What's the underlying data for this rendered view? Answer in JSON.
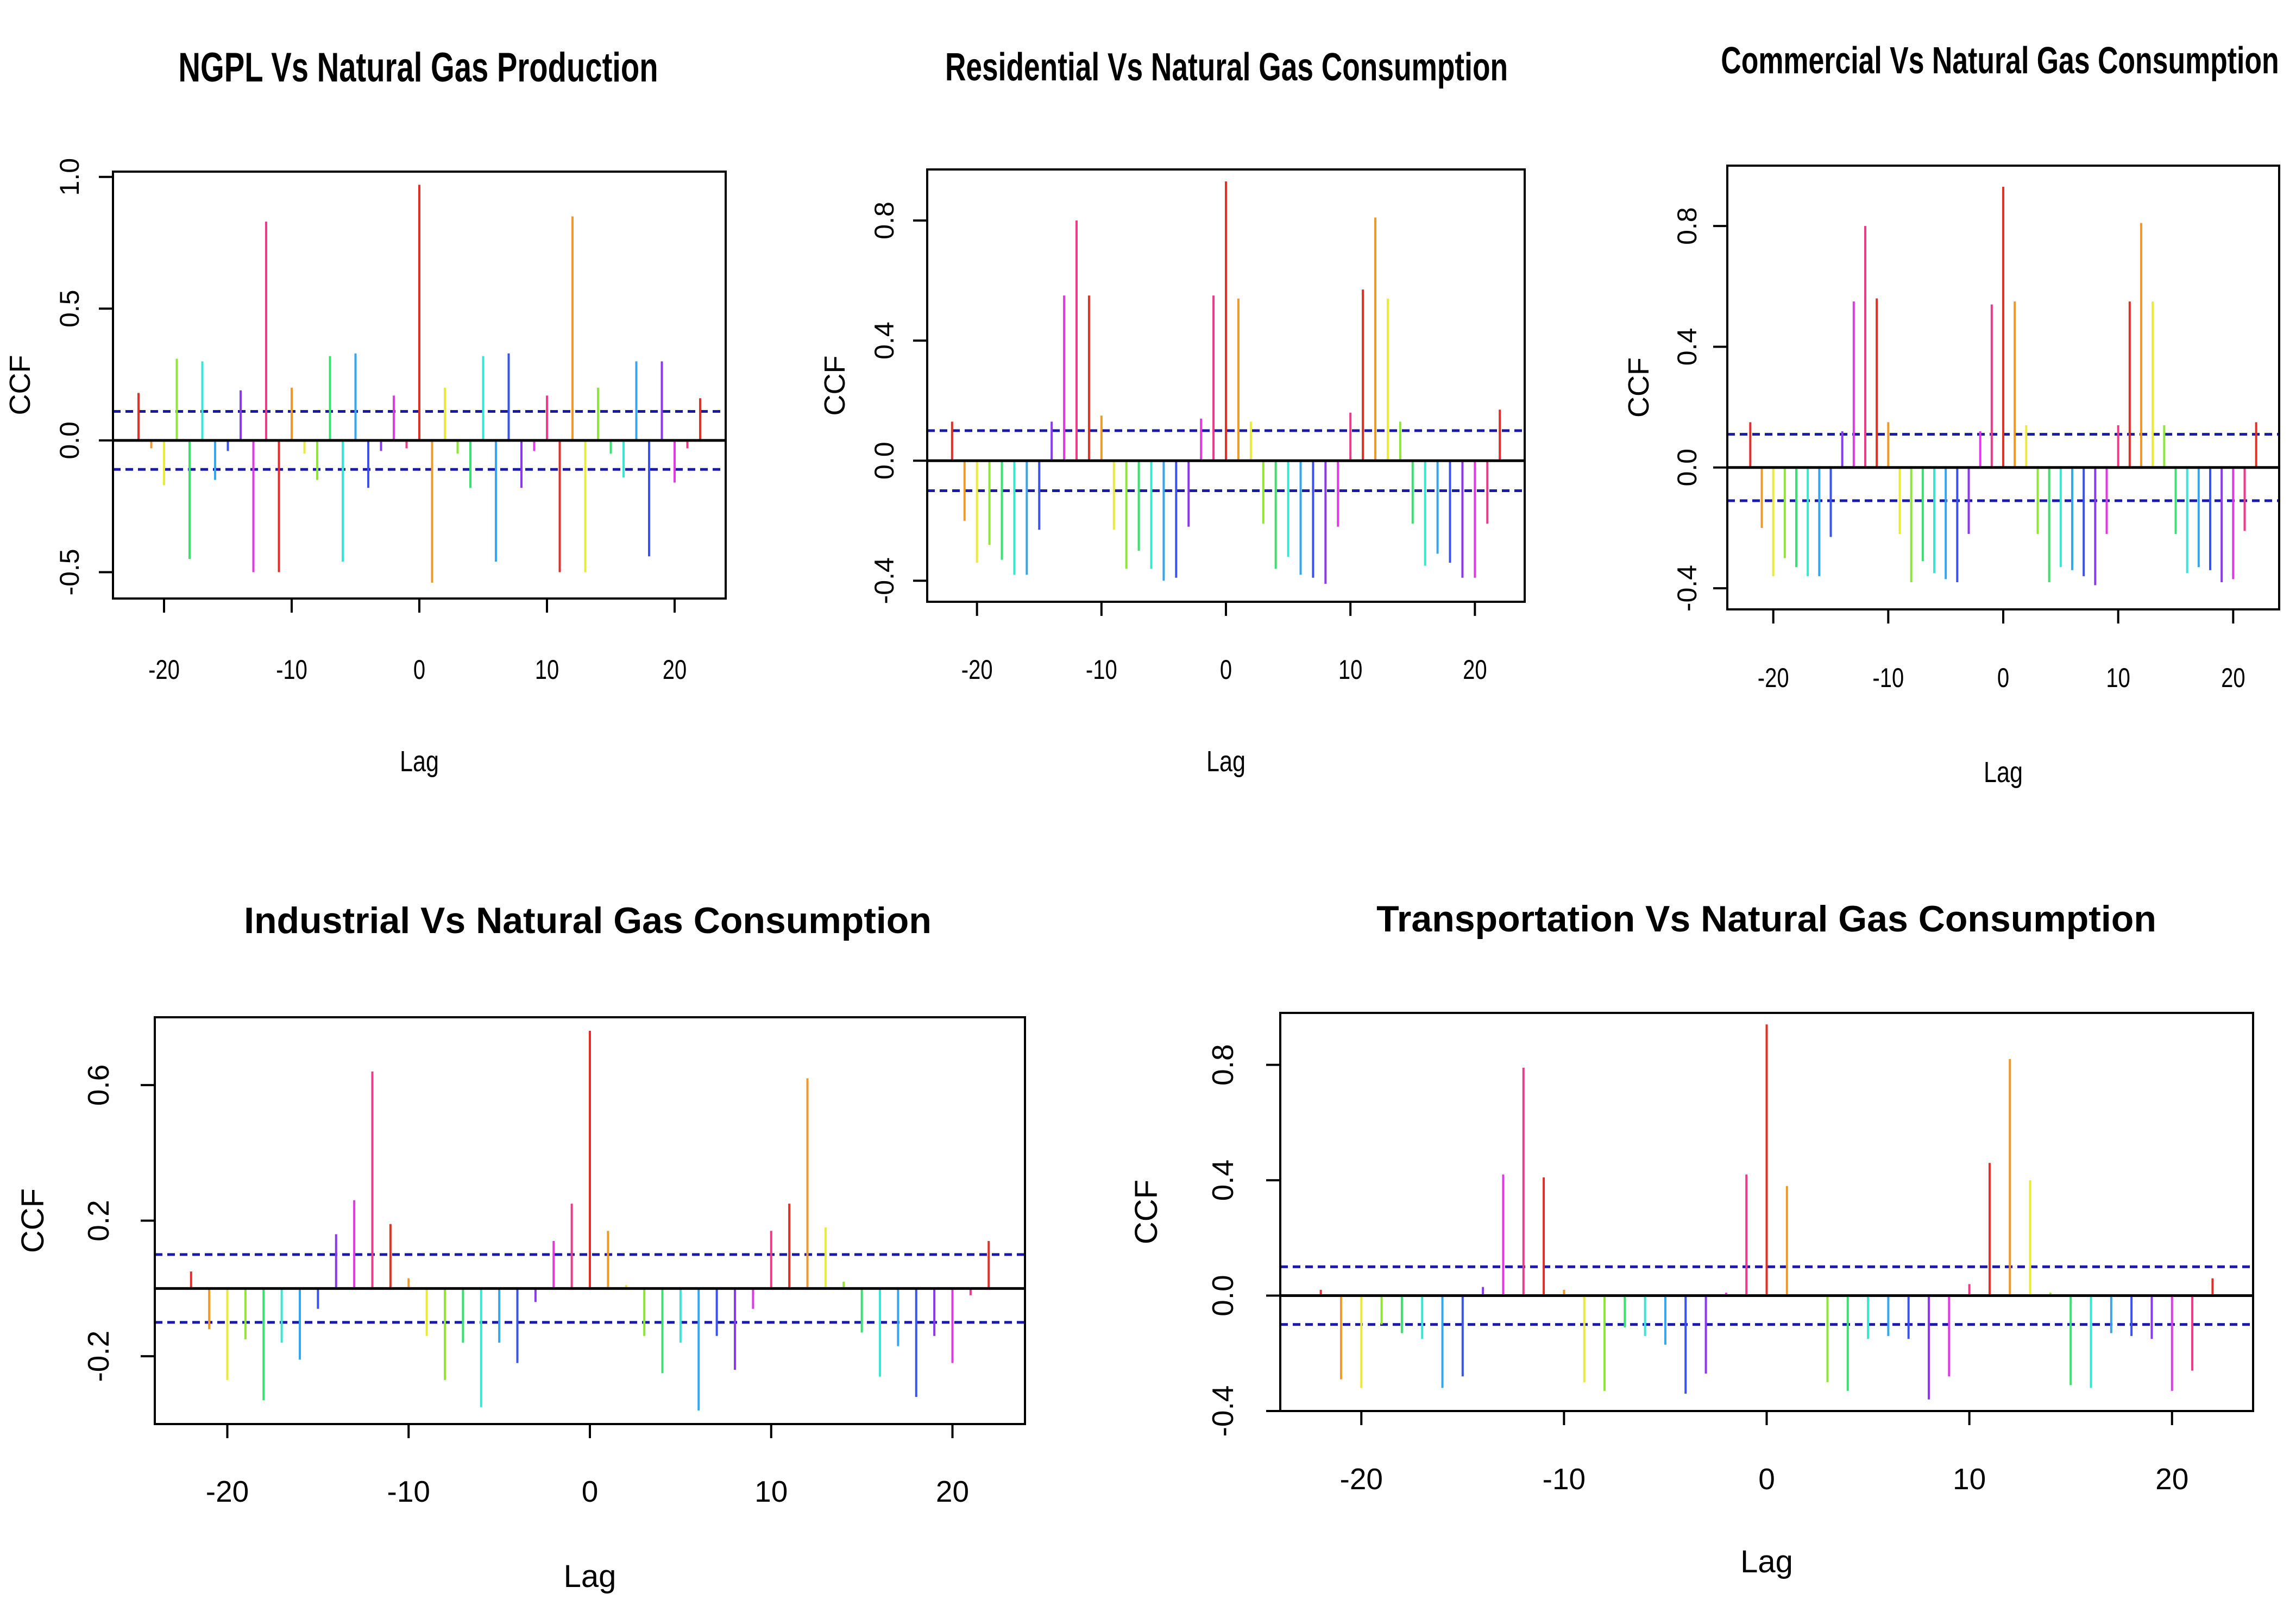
{
  "chart_data": [
    {
      "type": "bar",
      "title": "NGPL Vs Natural Gas Production",
      "xlabel": "Lag",
      "ylabel": "CCF",
      "xlim": [
        -24,
        24
      ],
      "ylim": [
        -0.6,
        1.02
      ],
      "xticks": [
        -20,
        -10,
        0,
        10,
        20
      ],
      "yticks": [
        -0.5,
        0.0,
        0.5,
        1.0
      ],
      "ytick_labels": [
        "-0.5",
        "0.0",
        "0.5",
        "1.0"
      ],
      "conf_limit": 0.11,
      "lags": [
        -22,
        -21,
        -20,
        -19,
        -18,
        -17,
        -16,
        -15,
        -14,
        -13,
        -12,
        -11,
        -10,
        -9,
        -8,
        -7,
        -6,
        -5,
        -4,
        -3,
        -2,
        -1,
        0,
        1,
        2,
        3,
        4,
        5,
        6,
        7,
        8,
        9,
        10,
        11,
        12,
        13,
        14,
        15,
        16,
        17,
        18,
        19,
        20,
        21,
        22
      ],
      "values": [
        0.18,
        -0.03,
        -0.17,
        0.31,
        -0.45,
        0.3,
        -0.15,
        -0.04,
        0.19,
        -0.5,
        0.83,
        -0.5,
        0.2,
        -0.05,
        -0.15,
        0.32,
        -0.46,
        0.33,
        -0.18,
        -0.04,
        0.17,
        -0.03,
        0.97,
        -0.54,
        0.2,
        -0.05,
        -0.18,
        0.32,
        -0.46,
        0.33,
        -0.18,
        -0.04,
        0.17,
        -0.5,
        0.85,
        -0.5,
        0.2,
        -0.05,
        -0.14,
        0.3,
        -0.44,
        0.3,
        -0.16,
        -0.03,
        0.16
      ]
    },
    {
      "type": "bar",
      "title": "Residential Vs Natural Gas Consumption",
      "xlabel": "Lag",
      "ylabel": "CCF",
      "xlim": [
        -24,
        24
      ],
      "ylim": [
        -0.47,
        0.97
      ],
      "xticks": [
        -20,
        -10,
        0,
        10,
        20
      ],
      "yticks": [
        -0.4,
        0.0,
        0.4,
        0.8
      ],
      "ytick_labels": [
        "-0.4",
        "0.0",
        "0.4",
        "0.8"
      ],
      "conf_limit": 0.1,
      "lags": [
        -22,
        -21,
        -20,
        -19,
        -18,
        -17,
        -16,
        -15,
        -14,
        -13,
        -12,
        -11,
        -10,
        -9,
        -8,
        -7,
        -6,
        -5,
        -4,
        -3,
        -2,
        -1,
        0,
        1,
        2,
        3,
        4,
        5,
        6,
        7,
        8,
        9,
        10,
        11,
        12,
        13,
        14,
        15,
        16,
        17,
        18,
        19,
        20,
        21,
        22
      ],
      "values": [
        0.13,
        -0.2,
        -0.34,
        -0.28,
        -0.33,
        -0.38,
        -0.38,
        -0.23,
        0.13,
        0.55,
        0.8,
        0.55,
        0.15,
        -0.23,
        -0.36,
        -0.3,
        -0.36,
        -0.4,
        -0.39,
        -0.22,
        0.14,
        0.55,
        0.93,
        0.54,
        0.13,
        -0.21,
        -0.36,
        -0.32,
        -0.38,
        -0.39,
        -0.41,
        -0.22,
        0.16,
        0.57,
        0.81,
        0.54,
        0.13,
        -0.21,
        -0.35,
        -0.31,
        -0.34,
        -0.39,
        -0.39,
        -0.21,
        0.17
      ]
    },
    {
      "type": "bar",
      "title": "Commercial Vs Natural Gas Consumption",
      "xlabel": "Lag",
      "ylabel": "CCF",
      "xlim": [
        -24,
        24
      ],
      "ylim": [
        -0.47,
        1.0
      ],
      "xticks": [
        -20,
        -10,
        0,
        10,
        20
      ],
      "yticks": [
        -0.4,
        0.0,
        0.4,
        0.8
      ],
      "ytick_labels": [
        "-0.4",
        "0.0",
        "0.4",
        "0.8"
      ],
      "conf_limit": 0.11,
      "lags": [
        -22,
        -21,
        -20,
        -19,
        -18,
        -17,
        -16,
        -15,
        -14,
        -13,
        -12,
        -11,
        -10,
        -9,
        -8,
        -7,
        -6,
        -5,
        -4,
        -3,
        -2,
        -1,
        0,
        1,
        2,
        3,
        4,
        5,
        6,
        7,
        8,
        9,
        10,
        11,
        12,
        13,
        14,
        15,
        16,
        17,
        18,
        19,
        20,
        21,
        22
      ],
      "values": [
        0.15,
        -0.2,
        -0.36,
        -0.3,
        -0.33,
        -0.36,
        -0.36,
        -0.23,
        0.12,
        0.55,
        0.8,
        0.56,
        0.15,
        -0.22,
        -0.38,
        -0.31,
        -0.35,
        -0.37,
        -0.38,
        -0.22,
        0.12,
        0.54,
        0.93,
        0.55,
        0.14,
        -0.22,
        -0.38,
        -0.33,
        -0.34,
        -0.36,
        -0.39,
        -0.22,
        0.14,
        0.55,
        0.81,
        0.55,
        0.14,
        -0.22,
        -0.35,
        -0.33,
        -0.34,
        -0.38,
        -0.37,
        -0.21,
        0.15
      ]
    },
    {
      "type": "bar",
      "title": "Industrial Vs Natural Gas Consumption",
      "xlabel": "Lag",
      "ylabel": "CCF",
      "xlim": [
        -24,
        24
      ],
      "ylim": [
        -0.4,
        0.8
      ],
      "xticks": [
        -20,
        -10,
        0,
        10,
        20
      ],
      "yticks": [
        -0.2,
        0.2,
        0.6
      ],
      "ytick_labels": [
        "-0.2",
        "0.2",
        "0.6"
      ],
      "conf_limit": 0.1,
      "lags": [
        -22,
        -21,
        -20,
        -19,
        -18,
        -17,
        -16,
        -15,
        -14,
        -13,
        -12,
        -11,
        -10,
        -9,
        -8,
        -7,
        -6,
        -5,
        -4,
        -3,
        -2,
        -1,
        0,
        1,
        2,
        3,
        4,
        5,
        6,
        7,
        8,
        9,
        10,
        11,
        12,
        13,
        14,
        15,
        16,
        17,
        18,
        19,
        20,
        21,
        22
      ],
      "values": [
        0.05,
        -0.12,
        -0.27,
        -0.15,
        -0.33,
        -0.16,
        -0.21,
        -0.06,
        0.16,
        0.26,
        0.64,
        0.19,
        0.03,
        -0.14,
        -0.27,
        -0.16,
        -0.35,
        -0.16,
        -0.22,
        -0.04,
        0.14,
        0.25,
        0.76,
        0.17,
        0.01,
        -0.14,
        -0.25,
        -0.16,
        -0.36,
        -0.14,
        -0.24,
        -0.06,
        0.17,
        0.25,
        0.62,
        0.18,
        0.02,
        -0.13,
        -0.26,
        -0.17,
        -0.32,
        -0.14,
        -0.22,
        -0.02,
        0.14
      ]
    },
    {
      "type": "bar",
      "title": "Transportation Vs Natural Gas Consumption",
      "xlabel": "Lag",
      "ylabel": "CCF",
      "xlim": [
        -24,
        24
      ],
      "ylim": [
        -0.4,
        0.98
      ],
      "xticks": [
        -20,
        -10,
        0,
        10,
        20
      ],
      "yticks": [
        -0.4,
        0.0,
        0.4,
        0.8
      ],
      "ytick_labels": [
        "-0.4",
        "0.0",
        "0.4",
        "0.8"
      ],
      "conf_limit": 0.1,
      "lags": [
        -22,
        -21,
        -20,
        -19,
        -18,
        -17,
        -16,
        -15,
        -14,
        -13,
        -12,
        -11,
        -10,
        -9,
        -8,
        -7,
        -6,
        -5,
        -4,
        -3,
        -2,
        -1,
        0,
        1,
        2,
        3,
        4,
        5,
        6,
        7,
        8,
        9,
        10,
        11,
        12,
        13,
        14,
        15,
        16,
        17,
        18,
        19,
        20,
        21,
        22
      ],
      "values": [
        0.02,
        -0.29,
        -0.32,
        -0.1,
        -0.13,
        -0.15,
        -0.32,
        -0.28,
        0.03,
        0.42,
        0.79,
        0.41,
        0.02,
        -0.3,
        -0.33,
        -0.11,
        -0.14,
        -0.17,
        -0.34,
        -0.27,
        0.01,
        0.42,
        0.94,
        0.38,
        0.0,
        -0.3,
        -0.33,
        -0.15,
        -0.14,
        -0.15,
        -0.36,
        -0.28,
        0.04,
        0.46,
        0.82,
        0.4,
        0.01,
        -0.31,
        -0.32,
        -0.13,
        -0.14,
        -0.15,
        -0.33,
        -0.26,
        0.06
      ]
    }
  ],
  "colors": [
    "#e0302a",
    "#ee9a2a",
    "#eaea3a",
    "#8ee63a",
    "#3ae070",
    "#3ae6d2",
    "#36a6ee",
    "#3a52ee",
    "#8a3aee",
    "#e03ae4",
    "#ee3a8a"
  ],
  "axis_color": "#000000",
  "conf_color": "#1a1aa8"
}
